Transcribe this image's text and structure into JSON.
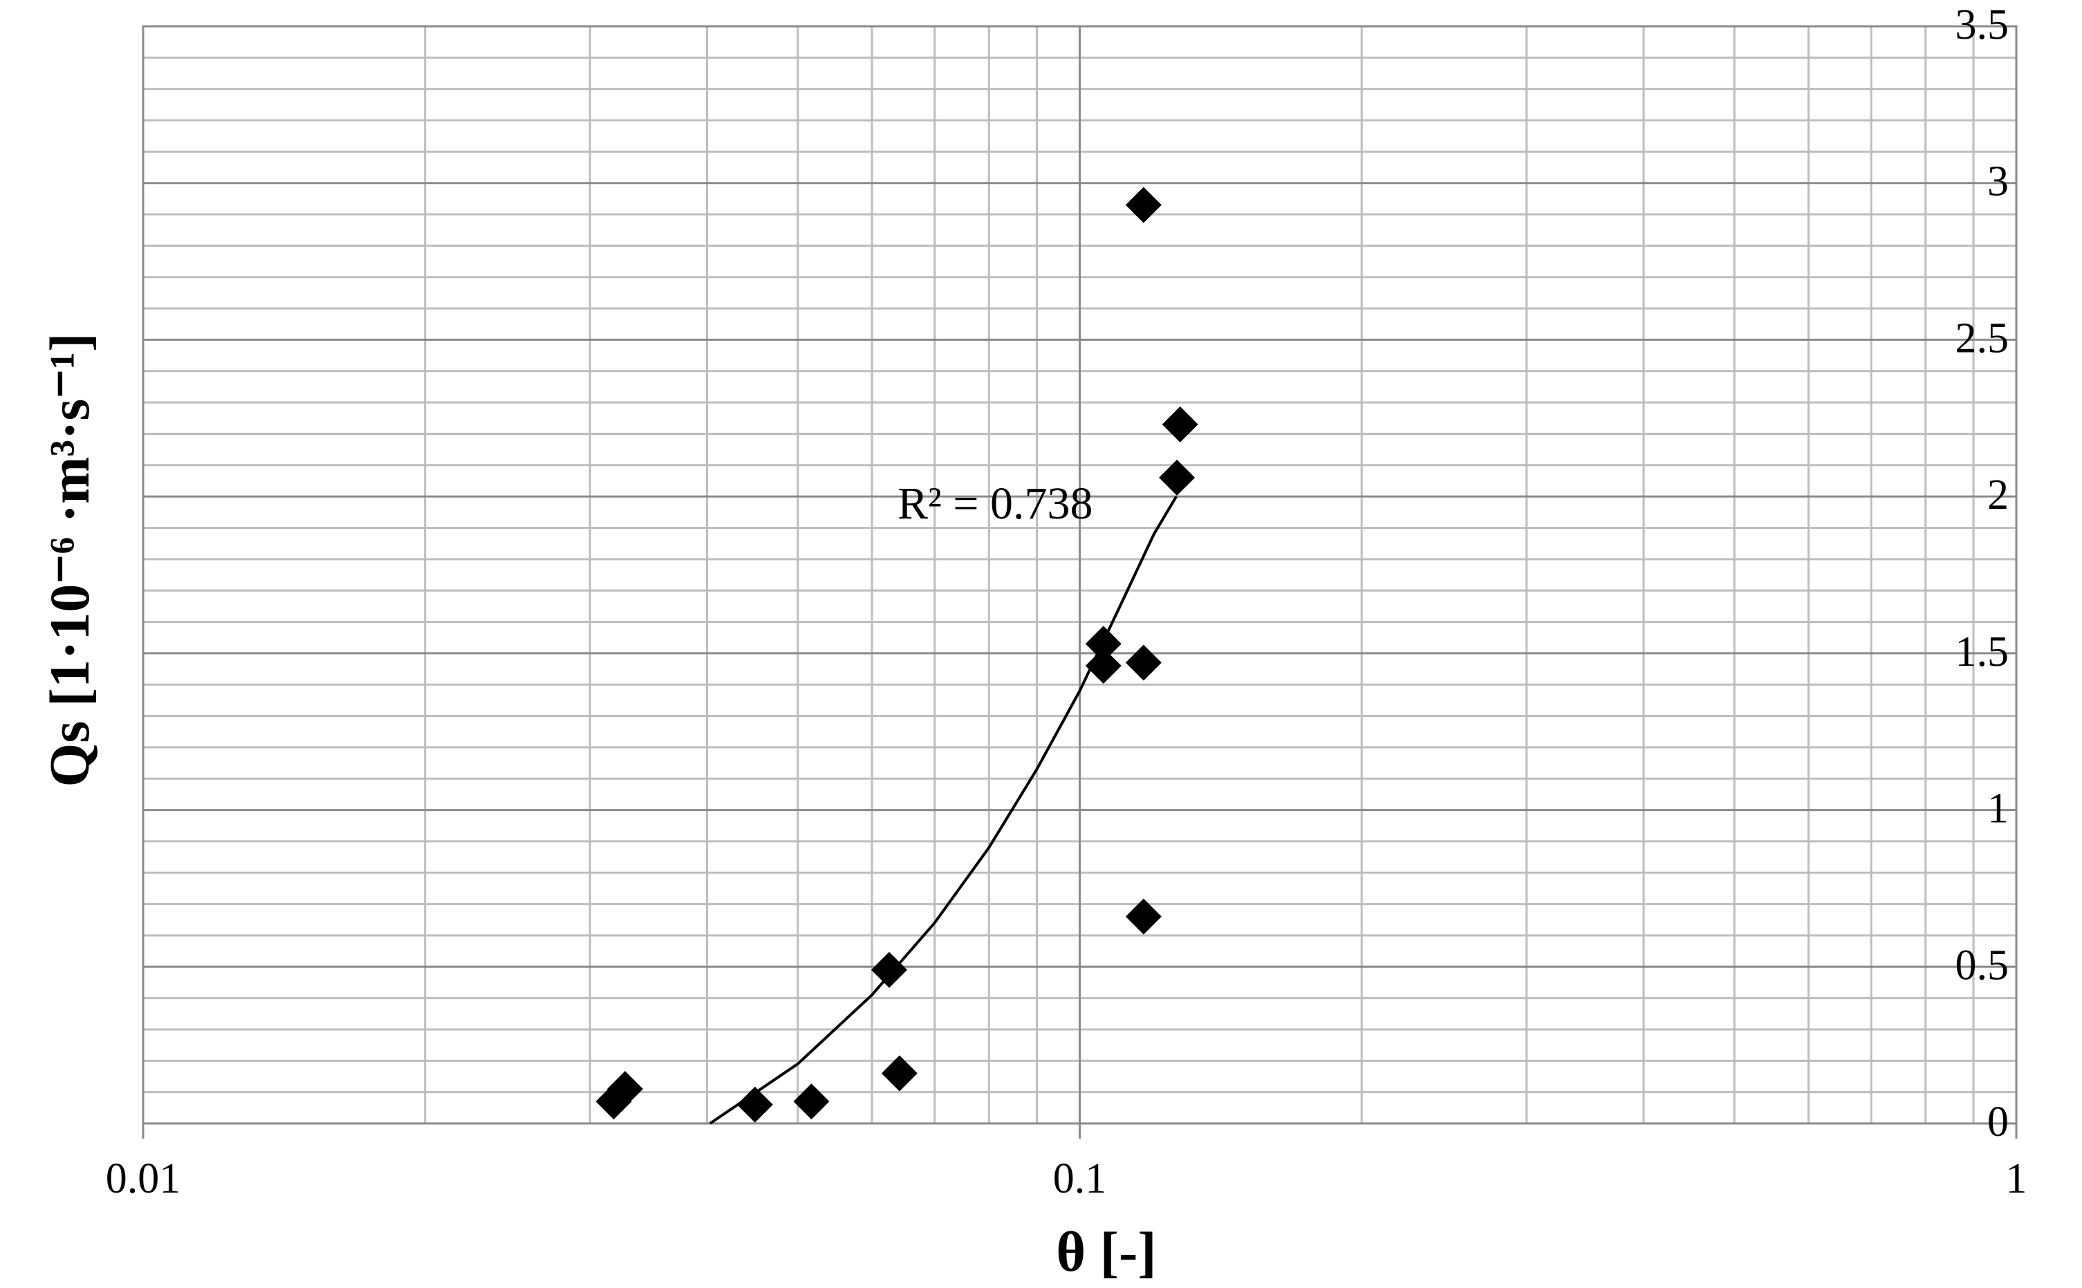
{
  "chart_data": {
    "type": "scatter",
    "xlabel": "θ [-]",
    "ylabel": "Qs [1·10⁻⁶ ·m³·s⁻¹]",
    "x_scale": "log",
    "xlim": [
      0.01,
      1
    ],
    "ylim": [
      0,
      3.5
    ],
    "x_tick_labels": [
      "0.01",
      "0.1",
      "1"
    ],
    "x_tick_values": [
      0.01,
      0.1,
      1
    ],
    "y_tick_labels": [
      "0",
      "0.5",
      "1",
      "1.5",
      "2",
      "2.5",
      "3",
      "3.5"
    ],
    "y_tick_values": [
      0,
      0.5,
      1,
      1.5,
      2,
      2.5,
      3,
      3.5
    ],
    "y_axis_side": "right",
    "grid": true,
    "legend": "none",
    "marker": "diamond",
    "marker_color": "#000000",
    "points": [
      {
        "x": 0.0318,
        "y": 0.07
      },
      {
        "x": 0.0327,
        "y": 0.11
      },
      {
        "x": 0.045,
        "y": 0.06
      },
      {
        "x": 0.0517,
        "y": 0.07
      },
      {
        "x": 0.0626,
        "y": 0.49
      },
      {
        "x": 0.0642,
        "y": 0.16
      },
      {
        "x": 0.106,
        "y": 1.53
      },
      {
        "x": 0.106,
        "y": 1.46
      },
      {
        "x": 0.117,
        "y": 2.93
      },
      {
        "x": 0.117,
        "y": 1.47
      },
      {
        "x": 0.117,
        "y": 0.66
      },
      {
        "x": 0.127,
        "y": 2.06
      },
      {
        "x": 0.128,
        "y": 2.23
      }
    ],
    "trendline": {
      "color": "#000000",
      "points": [
        {
          "x": 0.0403,
          "y": 0.0
        },
        {
          "x": 0.05,
          "y": 0.19
        },
        {
          "x": 0.06,
          "y": 0.41
        },
        {
          "x": 0.07,
          "y": 0.64
        },
        {
          "x": 0.08,
          "y": 0.88
        },
        {
          "x": 0.09,
          "y": 1.13
        },
        {
          "x": 0.1,
          "y": 1.38
        },
        {
          "x": 0.11,
          "y": 1.64
        },
        {
          "x": 0.12,
          "y": 1.88
        },
        {
          "x": 0.1268,
          "y": 2.0
        }
      ]
    },
    "annotations": [
      {
        "text": "R² = 0.738"
      }
    ]
  }
}
